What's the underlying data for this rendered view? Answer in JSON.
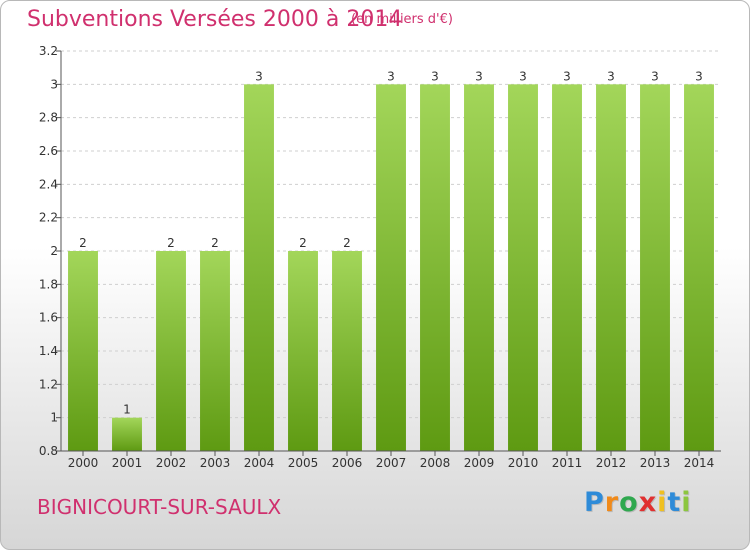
{
  "header": {
    "title": "Subventions Versées 2000 à 2014",
    "unit": "(en milliers d'€)"
  },
  "footer": {
    "commune": "BIGNICOURT-SUR-SAULX",
    "brand": "Proxiti",
    "brand_letters": [
      {
        "char": "P",
        "color": "#2e8bd8"
      },
      {
        "char": "r",
        "color": "#f08a1a"
      },
      {
        "char": "o",
        "color": "#2fa84f"
      },
      {
        "char": "x",
        "color": "#e03030"
      },
      {
        "char": "i",
        "color": "#f0c020"
      },
      {
        "char": "t",
        "color": "#2e8bd8"
      },
      {
        "char": "i",
        "color": "#8cc63f"
      }
    ]
  },
  "colors": {
    "bar_light": "#a3d65a",
    "bar_dark": "#5e9a12",
    "axis": "#555555",
    "grid": "#cfcfcf",
    "text": "#d0306e"
  },
  "chart_data": {
    "type": "bar",
    "title": "Subventions Versées 2000 à 2014",
    "subtitle": "(en milliers d'€)",
    "xlabel": "",
    "ylabel": "",
    "categories": [
      "2000",
      "2001",
      "2002",
      "2003",
      "2004",
      "2005",
      "2006",
      "2007",
      "2008",
      "2009",
      "2010",
      "2011",
      "2012",
      "2013",
      "2014"
    ],
    "values": [
      2,
      1,
      2,
      2,
      3,
      2,
      2,
      3,
      3,
      3,
      3,
      3,
      3,
      3,
      3
    ],
    "data_labels": [
      "2",
      "1",
      "2",
      "2",
      "3",
      "2",
      "2",
      "3",
      "3",
      "3",
      "3",
      "3",
      "3",
      "3",
      "3"
    ],
    "ylim": [
      0.8,
      3.2
    ],
    "yticks": [
      0.8,
      1,
      1.2,
      1.4,
      1.6,
      1.8,
      2,
      2.2,
      2.4,
      2.6,
      2.8,
      3,
      3.2
    ],
    "ytick_labels": [
      "0.8",
      "1",
      "1.2",
      "1.4",
      "1.6",
      "1.8",
      "2",
      "2.2",
      "2.4",
      "2.6",
      "2.8",
      "3",
      "3.2"
    ],
    "grid": true,
    "legend": "none"
  }
}
